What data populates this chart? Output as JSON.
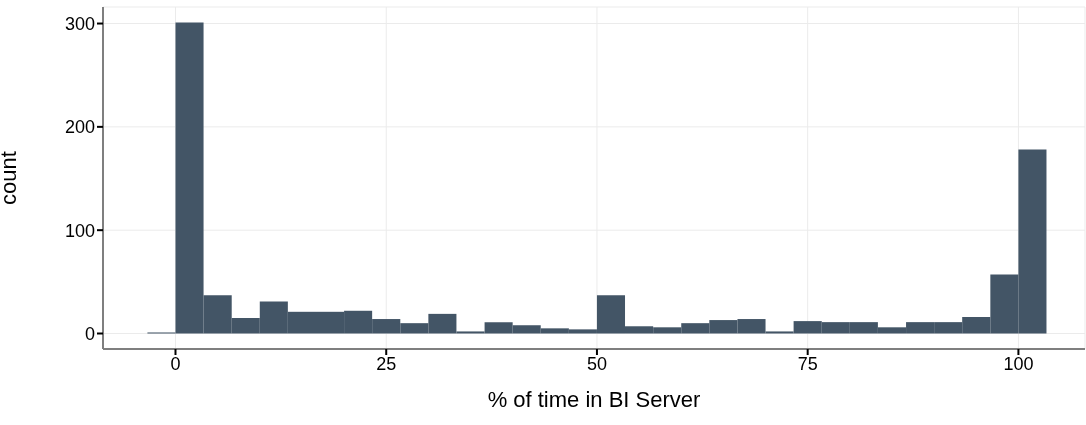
{
  "chart_data": {
    "type": "histogram",
    "xlabel": "% of time in BI Server",
    "ylabel": "count",
    "color": "#435566",
    "bins": [
      -3.33,
      0,
      3.33,
      6.67,
      10,
      13.33,
      16.67,
      20,
      23.33,
      26.67,
      30,
      33.33,
      36.67,
      40,
      43.33,
      46.67,
      50,
      53.33,
      56.67,
      60,
      63.33,
      66.67,
      70,
      73.33,
      76.67,
      80,
      83.33,
      86.67,
      90,
      93.33,
      96.67,
      100,
      103.33
    ],
    "values": [
      1,
      301,
      37,
      15,
      31,
      21,
      21,
      22,
      14,
      10,
      19,
      2,
      11,
      8,
      5,
      4,
      37,
      7,
      6,
      10,
      13,
      14,
      2,
      12,
      11,
      11,
      6,
      11,
      11,
      16,
      57,
      178
    ],
    "xlim": [
      -8.6,
      107.9
    ],
    "ylim": [
      -15,
      316
    ],
    "xticks": [
      0,
      25,
      50,
      75,
      100
    ],
    "yticks": [
      0,
      100,
      200,
      300
    ],
    "grid": true
  }
}
